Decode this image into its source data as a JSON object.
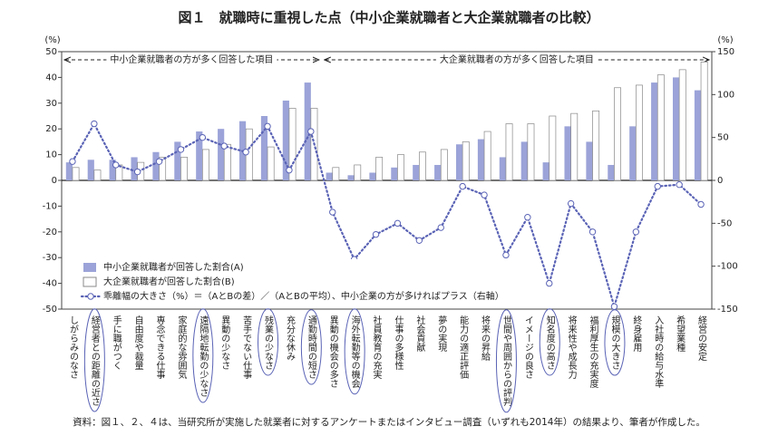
{
  "chart_data": {
    "type": "bar-line",
    "title": "図１　就職時に重視した点（中小企業就職者と大企業就職者の比較）",
    "ylabel": "(%)",
    "y2label": "(%)",
    "annotations": [
      "中小企業就職者の方が多く回答した項目",
      "大企業就職者の方が多く回答した項目"
    ],
    "source": "資料：図１、２、４は、当研究所が実施した就業者に対するアンケートまたはインタビュー調査（いずれも2014年）の結果より、筆者が作成した。",
    "categories": [
      "しがらみのなさ",
      "経営者との距離の近さ",
      "手に職がつく",
      "自由度や裁量",
      "専念できる仕事",
      "家庭的な雰囲気",
      "遠隔地転勤の少なさ",
      "異動の少なさ",
      "苦手でない仕事",
      "残業の少なさ",
      "充分な休み",
      "通勤時間の短さ",
      "異動の機会の多さ",
      "海外転勤等の機会",
      "社員教育の充実",
      "仕事の多様性",
      "社会貢献",
      "夢の実現",
      "能力の適正評価",
      "将来の昇給",
      "世間や周囲からの評判",
      "イメージの良さ",
      "知名度の高さ",
      "将来性や成長力",
      "福利厚生の充実度",
      "規模の大きさ",
      "終身雇用",
      "入社時の給与水準",
      "希望業種",
      "経営の安定"
    ],
    "series": [
      {
        "name": "中小企業就職者が回答した割合(A)",
        "type": "bar",
        "color": "#9ba3d8",
        "values": [
          7,
          8,
          8,
          9,
          11,
          15,
          19,
          20,
          23,
          25,
          31,
          38,
          3,
          2,
          3,
          5,
          6,
          6,
          14,
          16,
          9,
          15,
          7,
          21,
          15,
          6,
          21,
          38,
          40,
          35
        ]
      },
      {
        "name": "大企業就職者が回答した割合(B)",
        "type": "bar",
        "color": "#ffffff",
        "values": [
          5,
          4,
          6,
          7,
          9,
          9,
          12,
          14,
          20,
          13,
          28,
          28,
          5,
          6,
          9,
          10,
          11,
          12,
          15,
          19,
          22,
          22,
          25,
          26,
          27,
          36,
          37,
          41,
          43,
          46
        ]
      },
      {
        "name": "乖離幅の大きさ（%）＝（AとBの差）／（AとBの平均）、中小企業の方が多ければプラス（右軸）",
        "type": "line",
        "axis": "y2",
        "color": "#5a63b5",
        "values": [
          22,
          66,
          18,
          10,
          22,
          36,
          50,
          40,
          33,
          63,
          12,
          57,
          -37,
          -92,
          -63,
          -50,
          -70,
          -55,
          -7,
          -17,
          -87,
          -43,
          -120,
          -27,
          -60,
          -147,
          -60,
          -7,
          -5,
          -28
        ]
      }
    ],
    "ylim": [
      -50,
      50
    ],
    "yticks": [
      -50,
      -40,
      -30,
      -20,
      -10,
      0,
      10,
      20,
      30,
      40,
      50
    ],
    "y2lim": [
      -150,
      150
    ],
    "y2ticks": [
      -150,
      -100,
      -50,
      0,
      50,
      100,
      150
    ]
  }
}
